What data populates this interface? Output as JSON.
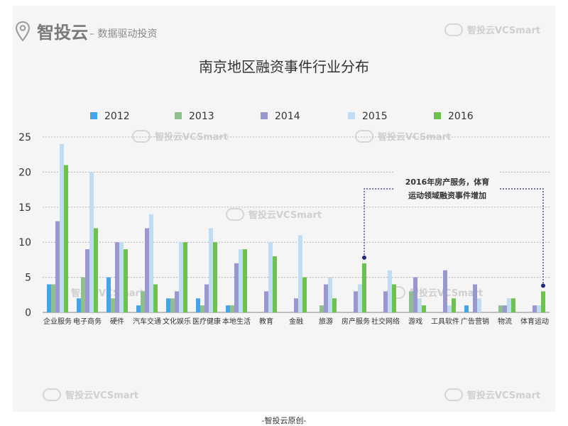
{
  "brand": {
    "name": "智投云",
    "slogan": "– 数据驱动投资"
  },
  "watermark_text": "智投云VCSmart",
  "footer_text": "-智投云原创-",
  "colors": {
    "2012": "#45a3e8",
    "2013": "#8fbf8c",
    "2014": "#9a97cf",
    "2015": "#bfdcf0",
    "2016": "#6cc24a",
    "accent": "#1f2a7a"
  },
  "annotation": {
    "line1": "2016年房产服务，体育",
    "line2": "运动领域融资事件增加"
  },
  "chart_data": {
    "type": "bar",
    "title": "南京地区融资事件行业分布",
    "xlabel": "",
    "ylabel": "",
    "ylim": [
      0,
      25
    ],
    "yticks": [
      0,
      5,
      10,
      15,
      20,
      25
    ],
    "grid": true,
    "legend_position": "top",
    "categories": [
      "企业服务",
      "电子商务",
      "硬件",
      "汽车交通",
      "文化娱乐",
      "医疗健康",
      "本地生活",
      "教育",
      "金融",
      "旅游",
      "房产服务",
      "社交网络",
      "游戏",
      "工具软件",
      "广告营销",
      "物流",
      "体育运动"
    ],
    "series": [
      {
        "name": "2012",
        "values": [
          4,
          2,
          5,
          1,
          2,
          2,
          1,
          0,
          0,
          0,
          0,
          0,
          0,
          0,
          1,
          0,
          0
        ]
      },
      {
        "name": "2013",
        "values": [
          4,
          5,
          2,
          3,
          2,
          1,
          1,
          0,
          0,
          1,
          0,
          0,
          3,
          0,
          0,
          1,
          0
        ]
      },
      {
        "name": "2014",
        "values": [
          13,
          9,
          10,
          12,
          3,
          4,
          7,
          3,
          2,
          4,
          3,
          3,
          5,
          6,
          4,
          1,
          1
        ]
      },
      {
        "name": "2015",
        "values": [
          24,
          20,
          10,
          14,
          10,
          12,
          9,
          10,
          11,
          5,
          4,
          6,
          2,
          1,
          2,
          2,
          1
        ]
      },
      {
        "name": "2016",
        "values": [
          21,
          12,
          9,
          4,
          10,
          10,
          9,
          8,
          5,
          2,
          7,
          4,
          1,
          2,
          0,
          2,
          3
        ]
      }
    ]
  }
}
